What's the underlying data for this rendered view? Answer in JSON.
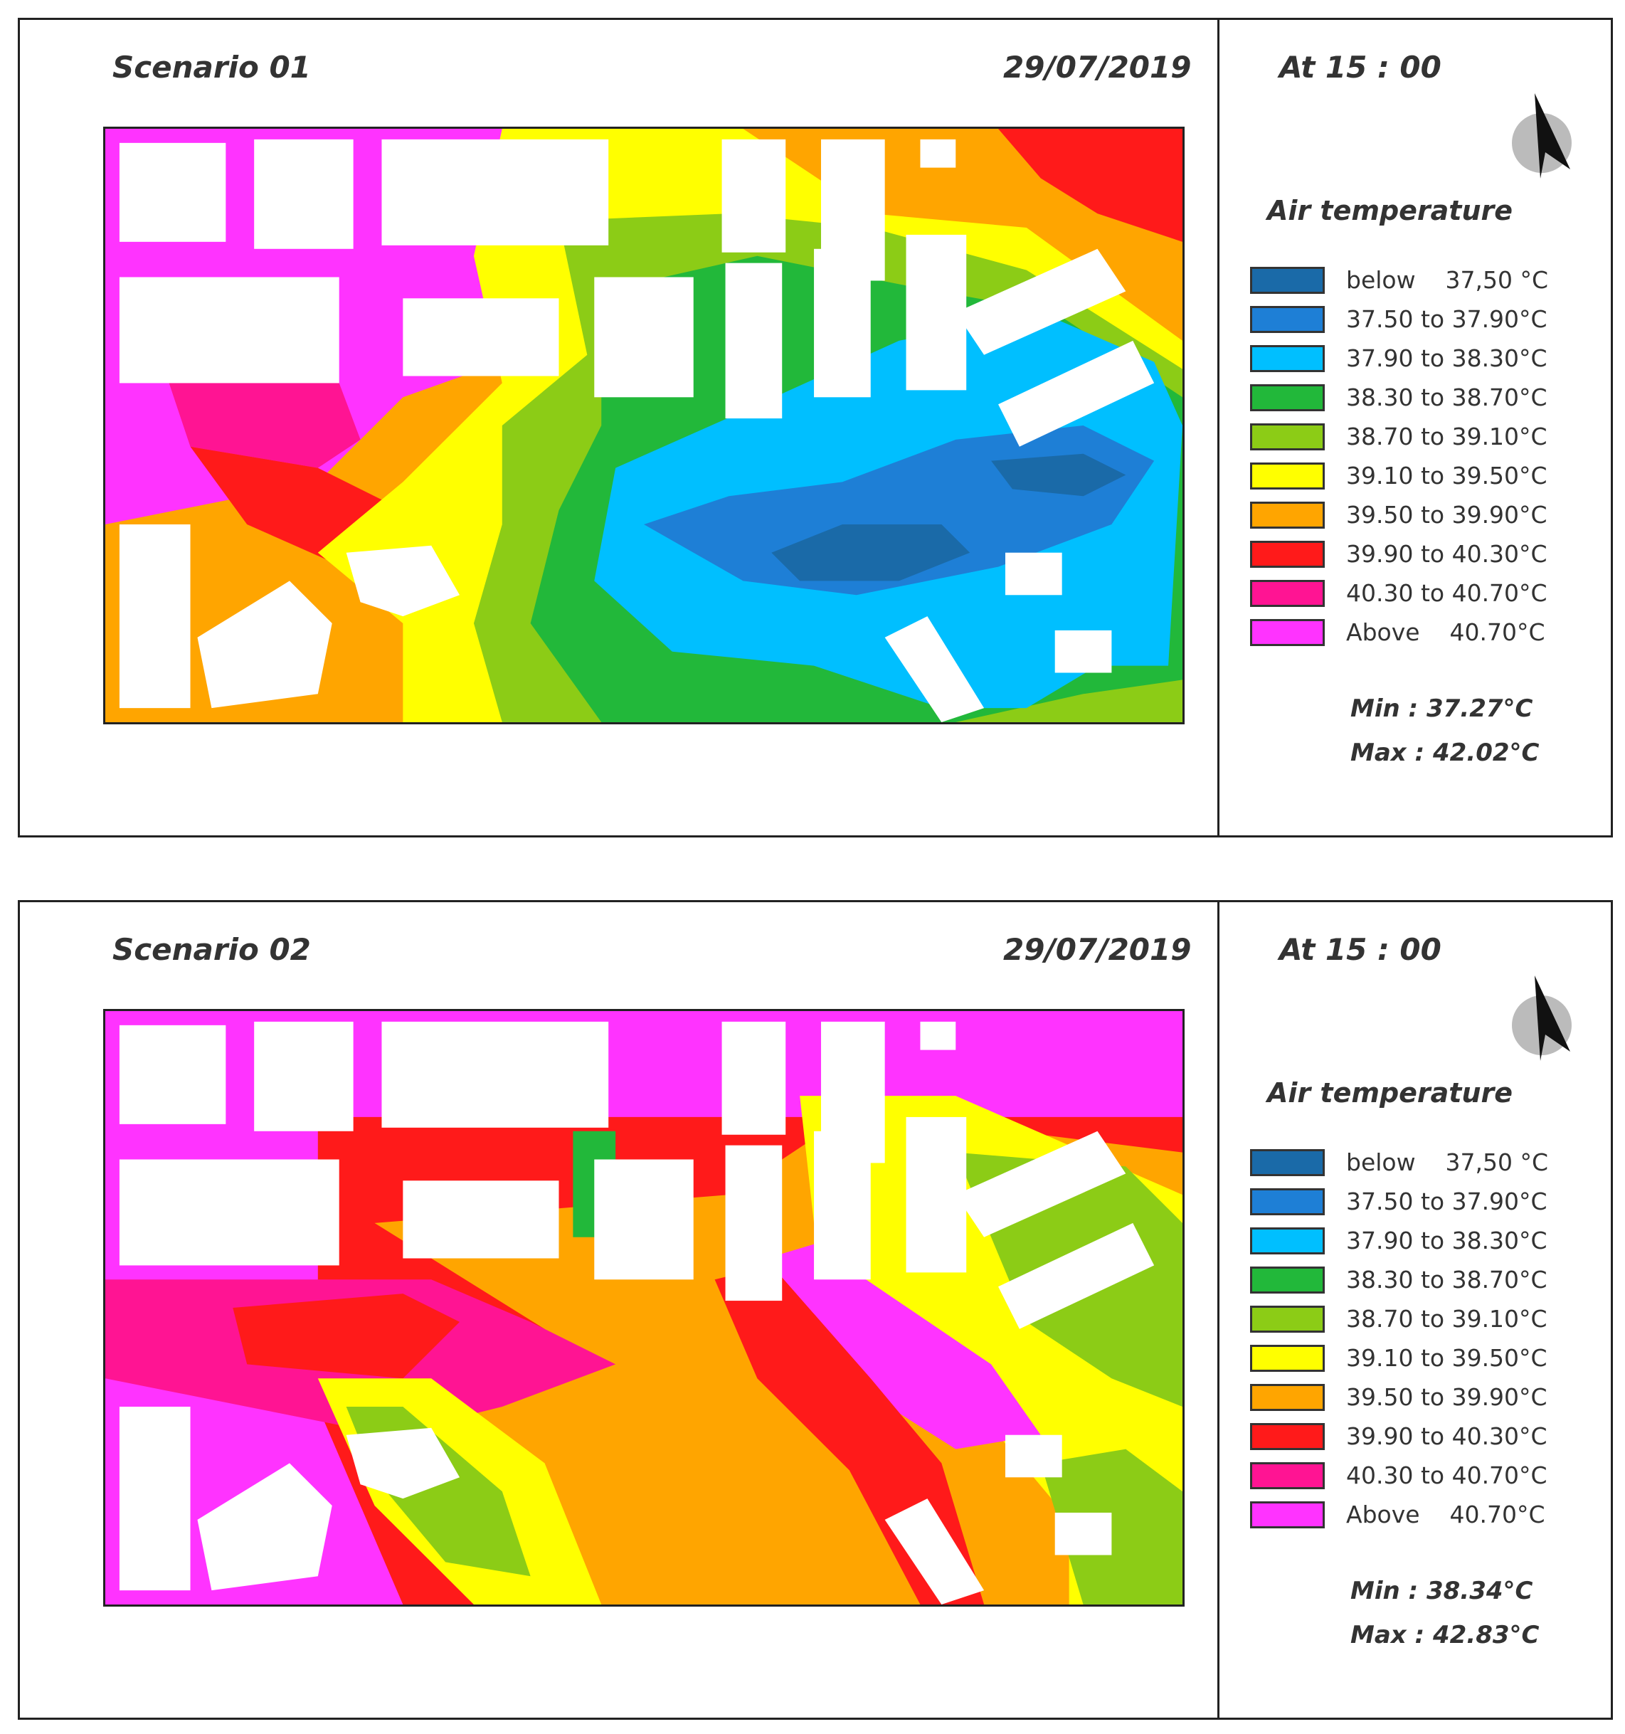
{
  "colors": {
    "below": "#1a6aa8",
    "c2": "#1e7fd6",
    "c3": "#00bfff",
    "c4": "#22b83a",
    "c5": "#8ccc16",
    "c6": "#ffff00",
    "c7": "#ffa500",
    "c8": "#ff1a1a",
    "c9": "#ff1493",
    "above": "#ff33ff",
    "building": "#ffffff"
  },
  "panels": [
    {
      "scenario": "Scenario 01",
      "date": "29/07/2019",
      "time": "At  15 : 00",
      "legend_title": "Air temperature",
      "legend": [
        {
          "label": "below    37,50 °C",
          "color": "#1a6aa8"
        },
        {
          "label": "37.50 to 37.90°C",
          "color": "#1e7fd6"
        },
        {
          "label": "37.90 to 38.30°C",
          "color": "#00bfff"
        },
        {
          "label": "38.30 to 38.70°C",
          "color": "#22b83a"
        },
        {
          "label": "38.70 to 39.10°C",
          "color": "#8ccc16"
        },
        {
          "label": "39.10 to 39.50°C",
          "color": "#ffff00"
        },
        {
          "label": "39.50 to 39.90°C",
          "color": "#ffa500"
        },
        {
          "label": "39.90 to 40.30°C",
          "color": "#ff1a1a"
        },
        {
          "label": "40.30 to 40.70°C",
          "color": "#ff1493"
        },
        {
          "label": "Above    40.70°C",
          "color": "#ff33ff"
        }
      ],
      "min": "Min : 37.27°C",
      "max": "Max : 42.02°C"
    },
    {
      "scenario": "Scenario 02",
      "date": "29/07/2019",
      "time": "At  15 : 00",
      "legend_title": "Air temperature",
      "legend": [
        {
          "label": "below    37,50 °C",
          "color": "#1a6aa8"
        },
        {
          "label": "37.50 to 37.90°C",
          "color": "#1e7fd6"
        },
        {
          "label": "37.90 to 38.30°C",
          "color": "#00bfff"
        },
        {
          "label": "38.30 to 38.70°C",
          "color": "#22b83a"
        },
        {
          "label": "38.70 to 39.10°C",
          "color": "#8ccc16"
        },
        {
          "label": "39.10 to 39.50°C",
          "color": "#ffff00"
        },
        {
          "label": "39.50 to 39.90°C",
          "color": "#ffa500"
        },
        {
          "label": "39.90 to 40.30°C",
          "color": "#ff1a1a"
        },
        {
          "label": "40.30 to 40.70°C",
          "color": "#ff1493"
        },
        {
          "label": "Above    40.70°C",
          "color": "#ff33ff"
        }
      ],
      "min": "Min : 38.34°C",
      "max": "Max : 42.83°C"
    }
  ]
}
